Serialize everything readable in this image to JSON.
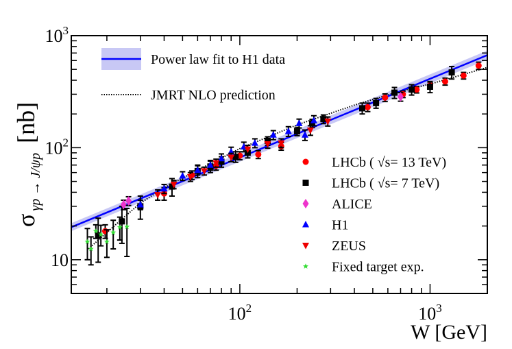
{
  "chart_data": {
    "type": "scatter",
    "scale": {
      "x": "log",
      "y": "log"
    },
    "xlim": [
      13,
      2000
    ],
    "ylim": [
      5,
      1000
    ],
    "xlabel": "W [GeV]",
    "ylabel": {
      "symbol": "σ",
      "subscript": "γp → J/ψp",
      "unit": "[nb]"
    },
    "x_ticks": [
      {
        "value": 100,
        "label": "10",
        "exponent": "2"
      },
      {
        "value": 1000,
        "label": "10",
        "exponent": "3"
      }
    ],
    "y_ticks": [
      {
        "value": 10,
        "label": "10",
        "exponent": ""
      },
      {
        "value": 100,
        "label": "10",
        "exponent": "2"
      },
      {
        "value": 1000,
        "label": "10",
        "exponent": "3"
      }
    ],
    "fit": {
      "name": "Power law fit to H1 data",
      "color": "#0000ff",
      "band_color": "#c8c8f5",
      "points": [
        [
          13,
          19.5
        ],
        [
          2000,
          670
        ]
      ],
      "band": [
        [
          13,
          18.0,
          21.2
        ],
        [
          2000,
          610,
          735
        ]
      ]
    },
    "prediction": {
      "name": "JMRT NLO prediction",
      "color": "#000000",
      "points": [
        [
          16,
          12.5
        ],
        [
          20,
          17.5
        ],
        [
          25,
          24.5
        ],
        [
          30,
          32
        ],
        [
          40,
          44
        ],
        [
          60,
          63
        ],
        [
          100,
          98
        ],
        [
          200,
          160
        ],
        [
          400,
          240
        ],
        [
          700,
          320
        ],
        [
          1000,
          370
        ],
        [
          2000,
          520
        ]
      ]
    },
    "series": [
      {
        "name": "LHCb ( √s= 13 TeV)",
        "marker": "circle",
        "color": "#ff0000",
        "points": [
          {
            "x": 19.6,
            "y": 18.0,
            "err": 2.5
          },
          {
            "x": 40,
            "y": 39,
            "err": 5
          },
          {
            "x": 56,
            "y": 57,
            "err": 5
          },
          {
            "x": 75,
            "y": 69,
            "err": 6
          },
          {
            "x": 100,
            "y": 85,
            "err": 7
          },
          {
            "x": 125,
            "y": 87,
            "err": 7
          },
          {
            "x": 165,
            "y": 103,
            "err": 8
          },
          {
            "x": 470,
            "y": 230,
            "err": 20
          },
          {
            "x": 580,
            "y": 280,
            "err": 22
          },
          {
            "x": 720,
            "y": 300,
            "err": 20
          },
          {
            "x": 850,
            "y": 330,
            "err": 22
          },
          {
            "x": 1000,
            "y": 360,
            "err": 25
          },
          {
            "x": 1200,
            "y": 390,
            "err": 28
          },
          {
            "x": 1500,
            "y": 440,
            "err": 30
          },
          {
            "x": 1800,
            "y": 540,
            "err": 40
          }
        ]
      },
      {
        "name": "LHCb ( √s= 7 TeV)",
        "marker": "square",
        "color": "#000000",
        "points": [
          {
            "x": 18,
            "y": 16.5,
            "err": 7
          },
          {
            "x": 24,
            "y": 22,
            "err": 8
          },
          {
            "x": 30,
            "y": 30,
            "err": 7
          },
          {
            "x": 44,
            "y": 45,
            "err": 8
          },
          {
            "x": 60,
            "y": 62,
            "err": 8
          },
          {
            "x": 70,
            "y": 68,
            "err": 8
          },
          {
            "x": 80,
            "y": 75,
            "err": 8
          },
          {
            "x": 95,
            "y": 83,
            "err": 9
          },
          {
            "x": 110,
            "y": 90,
            "err": 9
          },
          {
            "x": 140,
            "y": 115,
            "err": 10
          },
          {
            "x": 200,
            "y": 140,
            "err": 12
          },
          {
            "x": 240,
            "y": 165,
            "err": 14
          },
          {
            "x": 275,
            "y": 180,
            "err": 16
          },
          {
            "x": 440,
            "y": 225,
            "err": 25
          },
          {
            "x": 520,
            "y": 250,
            "err": 25
          },
          {
            "x": 650,
            "y": 310,
            "err": 35
          },
          {
            "x": 800,
            "y": 330,
            "err": 35
          },
          {
            "x": 1000,
            "y": 350,
            "err": 40
          },
          {
            "x": 1300,
            "y": 470,
            "err": 60
          }
        ]
      },
      {
        "name": "ALICE",
        "marker": "diamond",
        "color": "#ee33cc",
        "points": [
          {
            "x": 24.5,
            "y": 31,
            "err": 3
          },
          {
            "x": 26,
            "y": 33.5,
            "err": 3
          },
          {
            "x": 700,
            "y": 285,
            "err": 25
          }
        ]
      },
      {
        "name": "H1",
        "marker": "triangle-up",
        "color": "#0000ff",
        "points": [
          {
            "x": 30,
            "y": 31,
            "err": 3
          },
          {
            "x": 40,
            "y": 43,
            "err": 4
          },
          {
            "x": 50,
            "y": 56,
            "err": 5
          },
          {
            "x": 60,
            "y": 63,
            "err": 6
          },
          {
            "x": 70,
            "y": 70,
            "err": 7
          },
          {
            "x": 80,
            "y": 80,
            "err": 8
          },
          {
            "x": 90,
            "y": 92,
            "err": 9
          },
          {
            "x": 105,
            "y": 102,
            "err": 10
          },
          {
            "x": 120,
            "y": 110,
            "err": 10
          },
          {
            "x": 150,
            "y": 130,
            "err": 12
          },
          {
            "x": 180,
            "y": 140,
            "err": 14
          },
          {
            "x": 205,
            "y": 165,
            "err": 15
          },
          {
            "x": 220,
            "y": 130,
            "err": 14
          },
          {
            "x": 245,
            "y": 175,
            "err": 18
          }
        ]
      },
      {
        "name": "ZEUS",
        "marker": "triangle-down",
        "color": "#ee0000",
        "points": [
          {
            "x": 37,
            "y": 38,
            "err": 4
          },
          {
            "x": 45,
            "y": 47,
            "err": 4
          },
          {
            "x": 55,
            "y": 55,
            "err": 5
          },
          {
            "x": 65,
            "y": 62,
            "err": 5
          },
          {
            "x": 75,
            "y": 73,
            "err": 6
          },
          {
            "x": 90,
            "y": 82,
            "err": 7
          },
          {
            "x": 110,
            "y": 97,
            "err": 8
          },
          {
            "x": 140,
            "y": 108,
            "err": 9
          },
          {
            "x": 165,
            "y": 110,
            "err": 10
          },
          {
            "x": 235,
            "y": 143,
            "err": 14
          },
          {
            "x": 290,
            "y": 172,
            "err": 16
          }
        ]
      },
      {
        "name": "Fixed target exp.",
        "marker": "star",
        "color": "#33dd33",
        "points": [
          {
            "x": 15.8,
            "y": 14.5,
            "err": 4.5
          },
          {
            "x": 16.5,
            "y": 12.5,
            "err": 3.5
          },
          {
            "x": 17.5,
            "y": 18.0,
            "err": 2.5
          },
          {
            "x": 18.6,
            "y": 16.8,
            "err": 3.5
          },
          {
            "x": 20.0,
            "y": 14.5,
            "err": 4
          },
          {
            "x": 21.6,
            "y": 17.5,
            "err": 5
          },
          {
            "x": 23.4,
            "y": 19.5,
            "err": 4.5
          },
          {
            "x": 25.5,
            "y": 19.7,
            "err": 9
          }
        ]
      }
    ],
    "legend": {
      "placement": "top-left and right-center"
    }
  }
}
